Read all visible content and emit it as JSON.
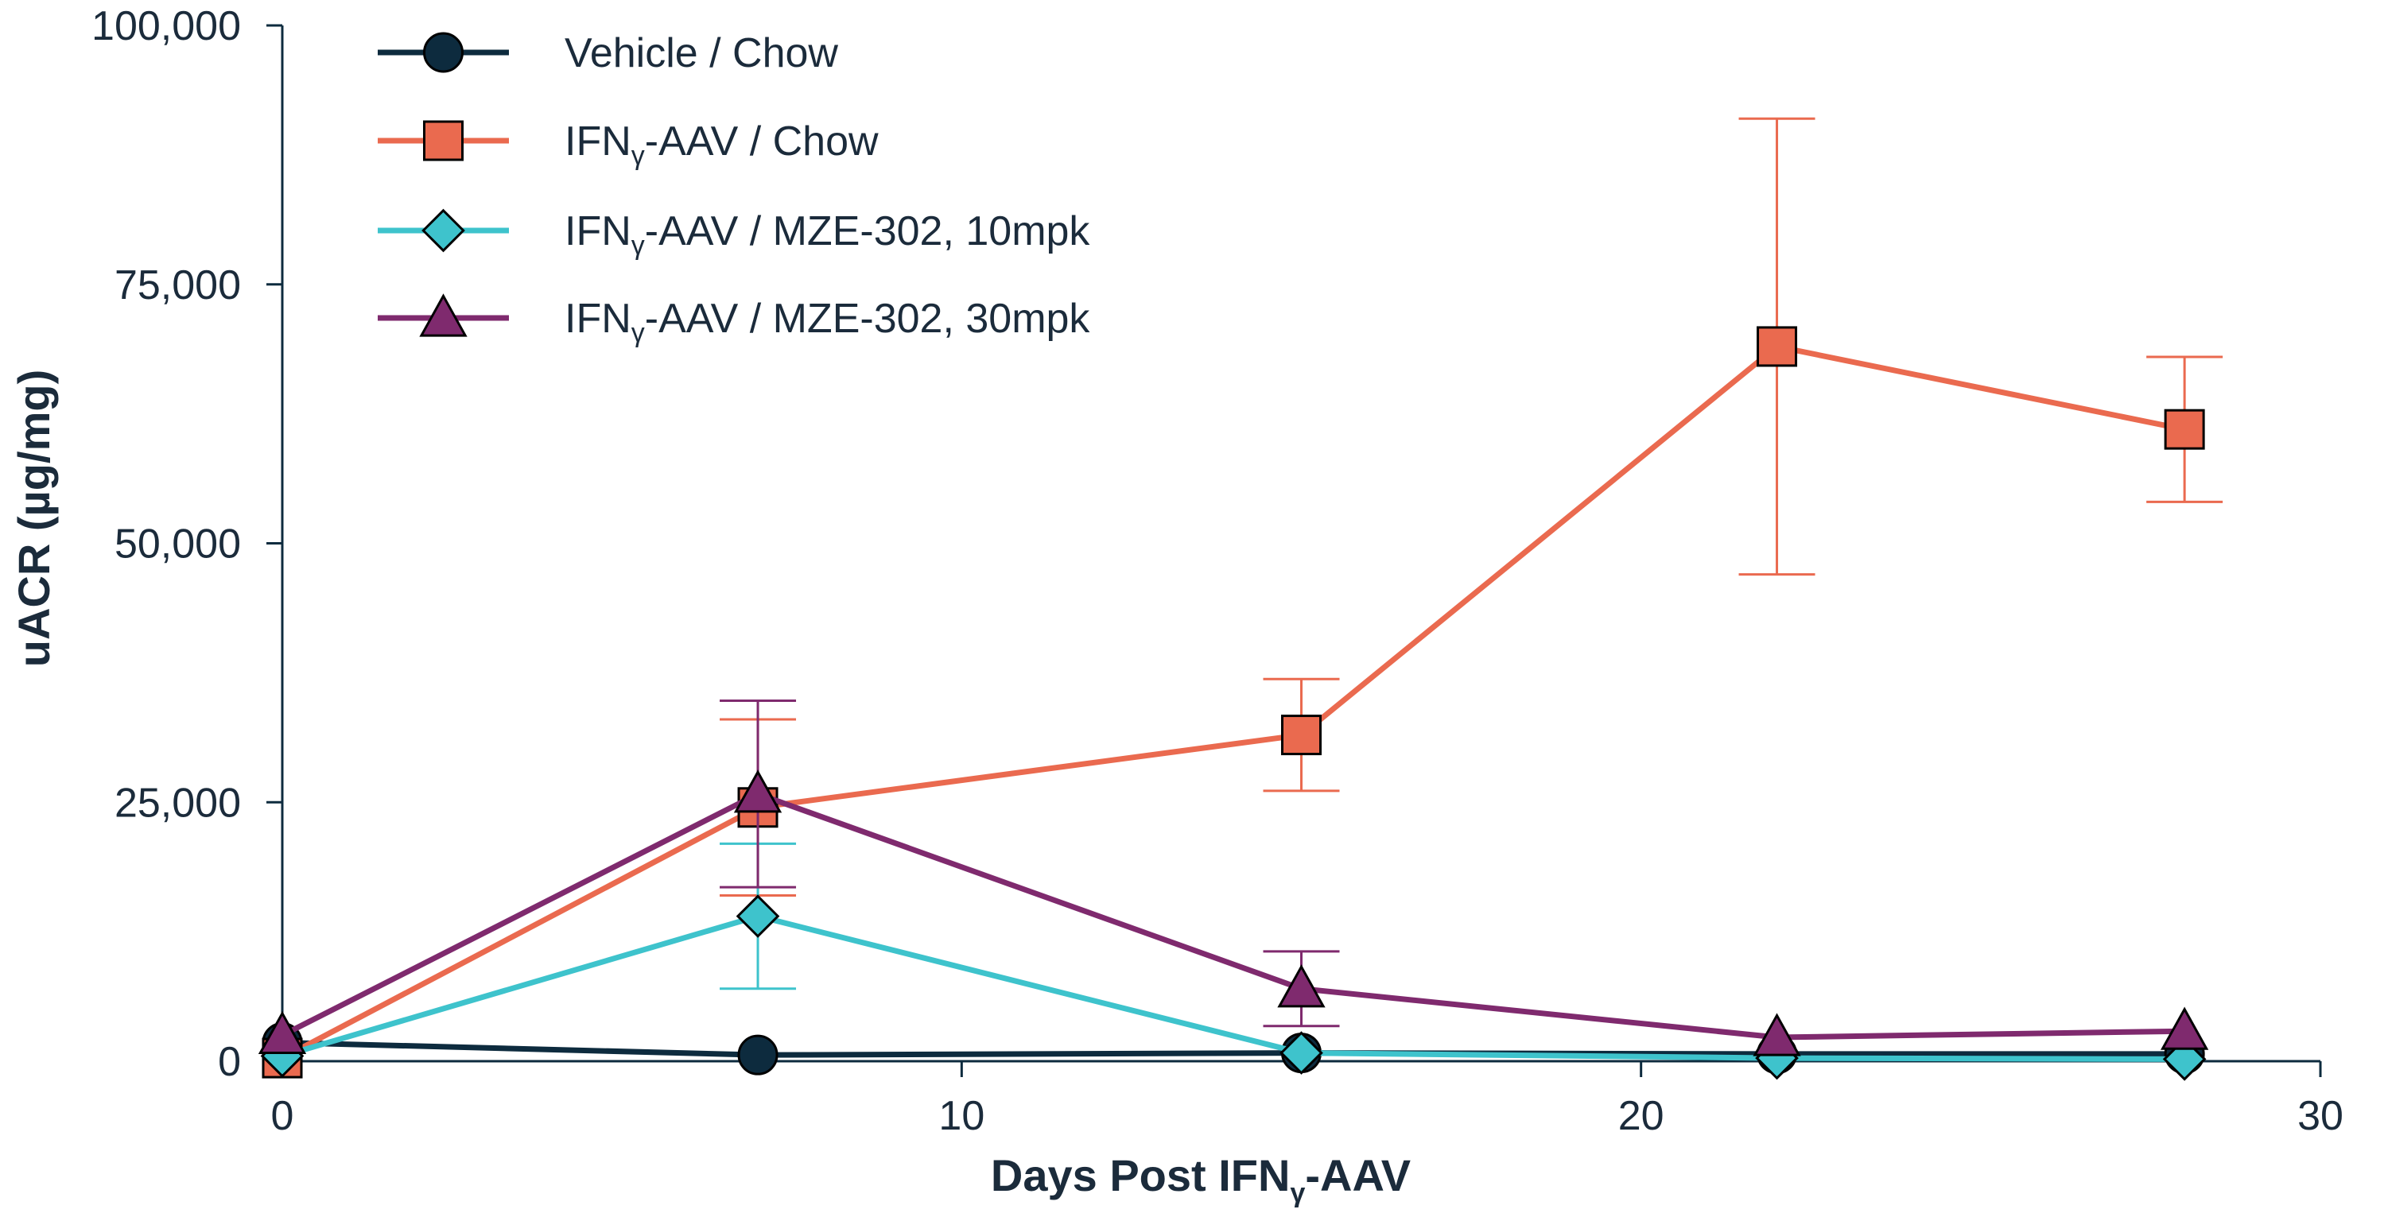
{
  "chart_data": {
    "type": "line",
    "title": "",
    "xlabel": "Days Post IFNγ-AAV",
    "ylabel": "uACR (µg/mg)",
    "xlim": [
      0,
      30
    ],
    "ylim": [
      0,
      100000
    ],
    "x_ticks": [
      0,
      10,
      20,
      30
    ],
    "y_ticks": [
      0,
      25000,
      50000,
      75000,
      100000
    ],
    "x_tick_labels": [
      "0",
      "10",
      "20",
      "30"
    ],
    "y_tick_labels": [
      "0",
      "25,000",
      "50,000",
      "75,000",
      "100,000"
    ],
    "grid": false,
    "legend_position": "top-left",
    "legend": [
      {
        "main": "Vehicle / Chow",
        "pre": "",
        "sub": "",
        "post": ""
      },
      {
        "main": "",
        "pre": "IFN",
        "sub": "γ",
        "post": "-AAV / Chow"
      },
      {
        "main": "",
        "pre": "IFN",
        "sub": "γ",
        "post": "-AAV / MZE-302, 10mpk"
      },
      {
        "main": "",
        "pre": "IFN",
        "sub": "γ",
        "post": "-AAV / MZE-302, 30mpk"
      }
    ],
    "series": [
      {
        "name": "Vehicle / Chow",
        "marker": "circle",
        "color": "#0d2b3e",
        "x": [
          0,
          7,
          15,
          22,
          28
        ],
        "values": [
          1800,
          600,
          800,
          700,
          700
        ],
        "err": [
          0,
          0,
          0,
          0,
          0
        ]
      },
      {
        "name": "IFNγ-AAV / Chow",
        "marker": "square",
        "color": "#ea6a4f",
        "x": [
          0,
          7,
          15,
          22,
          28
        ],
        "values": [
          300,
          24500,
          31500,
          69000,
          61000
        ],
        "err": [
          0,
          8500,
          5400,
          22000,
          7000
        ]
      },
      {
        "name": "IFNγ-AAV / MZE-302, 10mpk",
        "marker": "diamond",
        "color": "#3ec3cc",
        "x": [
          0,
          7,
          15,
          22,
          28
        ],
        "values": [
          500,
          14000,
          800,
          300,
          200
        ],
        "err": [
          0,
          7000,
          0,
          0,
          0
        ]
      },
      {
        "name": "IFNγ-AAV / MZE-302, 30mpk",
        "marker": "triangle",
        "color": "#7f2a6e",
        "x": [
          0,
          7,
          15,
          22,
          28
        ],
        "values": [
          2500,
          25800,
          7000,
          2300,
          2900
        ],
        "err": [
          0,
          9000,
          3600,
          0,
          0
        ]
      }
    ]
  },
  "colors": {
    "axis": "#0d2b3e",
    "text": "#1b2b3b"
  }
}
